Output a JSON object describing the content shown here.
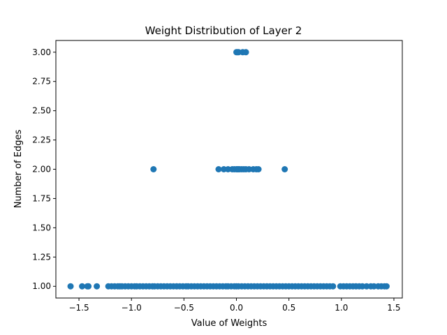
{
  "chart_data": {
    "type": "scatter",
    "title": "Weight Distribution of Layer 2",
    "xlabel": "Value of Weights",
    "ylabel": "Number of Edges",
    "xlim": [
      -1.72,
      1.58
    ],
    "ylim": [
      0.9,
      3.1
    ],
    "xticks": [
      -1.5,
      -1.0,
      -0.5,
      0.0,
      0.5,
      1.0,
      1.5
    ],
    "xtick_labels": [
      "−1.5",
      "−1.0",
      "−0.5",
      "0.0",
      "0.5",
      "1.0",
      "1.5"
    ],
    "yticks": [
      1.0,
      1.25,
      1.5,
      1.75,
      2.0,
      2.25,
      2.5,
      2.75,
      3.0
    ],
    "ytick_labels": [
      "1.00",
      "1.25",
      "1.50",
      "1.75",
      "2.00",
      "2.25",
      "2.50",
      "2.75",
      "3.00"
    ],
    "grid": false,
    "marker_color": "#1f77b4",
    "series": [
      {
        "x": [
          -1.58,
          -1.47,
          -1.42,
          -1.41,
          -1.33,
          -1.22,
          -1.19,
          -1.16,
          -1.13,
          -1.11,
          -1.09,
          -1.06,
          -1.03,
          -1.0,
          -0.97,
          -0.95,
          -0.92,
          -0.89,
          -0.86,
          -0.83,
          -0.8,
          -0.78,
          -0.75,
          -0.72,
          -0.69,
          -0.66,
          -0.63,
          -0.6,
          -0.57,
          -0.54,
          -0.51,
          -0.48,
          -0.46,
          -0.43,
          -0.4,
          -0.37,
          -0.34,
          -0.31,
          -0.28,
          -0.25,
          -0.22,
          -0.19,
          -0.16,
          -0.13,
          -0.1,
          -0.08,
          -0.05,
          -0.02,
          0.0,
          0.02,
          0.05,
          0.08,
          0.11,
          0.14,
          0.17,
          0.2,
          0.23,
          0.26,
          0.29,
          0.32,
          0.35,
          0.38,
          0.41,
          0.44,
          0.47,
          0.5,
          0.53,
          0.56,
          0.59,
          0.62,
          0.65,
          0.68,
          0.71,
          0.74,
          0.77,
          0.8,
          0.83,
          0.86,
          0.89,
          0.92,
          0.99,
          1.02,
          1.05,
          1.08,
          1.11,
          1.14,
          1.17,
          1.2,
          1.24,
          1.28,
          1.31,
          1.35,
          1.38,
          1.41,
          1.43,
          -0.79,
          -0.17,
          -0.12,
          -0.08,
          -0.04,
          -0.02,
          0.0,
          0.01,
          0.02,
          0.03,
          0.05,
          0.07,
          0.09,
          0.12,
          0.16,
          0.19,
          0.21,
          0.46,
          0.0,
          0.01,
          0.02,
          0.06,
          0.09
        ],
        "y": [
          1,
          1,
          1,
          1,
          1,
          1,
          1,
          1,
          1,
          1,
          1,
          1,
          1,
          1,
          1,
          1,
          1,
          1,
          1,
          1,
          1,
          1,
          1,
          1,
          1,
          1,
          1,
          1,
          1,
          1,
          1,
          1,
          1,
          1,
          1,
          1,
          1,
          1,
          1,
          1,
          1,
          1,
          1,
          1,
          1,
          1,
          1,
          1,
          1,
          1,
          1,
          1,
          1,
          1,
          1,
          1,
          1,
          1,
          1,
          1,
          1,
          1,
          1,
          1,
          1,
          1,
          1,
          1,
          1,
          1,
          1,
          1,
          1,
          1,
          1,
          1,
          1,
          1,
          1,
          1,
          1,
          1,
          1,
          1,
          1,
          1,
          1,
          1,
          1,
          1,
          1,
          1,
          1,
          1,
          1,
          2,
          2,
          2,
          2,
          2,
          2,
          2,
          2,
          2,
          2,
          2,
          2,
          2,
          2,
          2,
          2,
          2,
          2,
          3,
          3,
          3,
          3,
          3
        ]
      }
    ]
  }
}
